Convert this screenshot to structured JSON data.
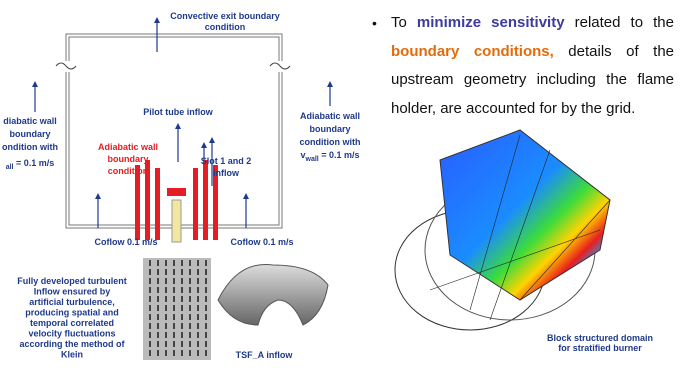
{
  "diagram": {
    "top_label": [
      "Convective exit boundary",
      "condition"
    ],
    "left_label": [
      "diabatic wall",
      "boundary",
      "ondition with"
    ],
    "left_velocity": {
      "subscript": "all",
      "rest": " = 0.1 m/s"
    },
    "right_label": [
      "Adiabatic wall",
      "boundary",
      "condition with"
    ],
    "right_velocity": {
      "symbol": "v",
      "subscript": "wall",
      "rest": " = 0.1 m/s"
    },
    "pilot_label": "Pilot tube inflow",
    "slot_label": [
      "Slot 1 and 2",
      "inflow"
    ],
    "red_label": [
      "Adiabatic wall",
      "boundary",
      "condition"
    ],
    "coflow_left": "Coflow 0.1 m/s",
    "coflow_right": "Coflow 0.1 m/s"
  },
  "inflow_note": [
    "Fully developed turbulent",
    "Inflow ensured by",
    "artificial turbulence,",
    "producing spatial and",
    "temporal correlated",
    "velocity fluctuations",
    "according the method of",
    "Klein"
  ],
  "inflow_caption": "TSF_A inflow",
  "bullet": {
    "parts": [
      "To ",
      "minimize sensitivity",
      " related to the ",
      "boundary conditions,",
      " details of the upstream geometry including the flame holder, are accounted for by the grid."
    ]
  },
  "domain_caption": [
    "Block structured domain",
    "for stratified burner"
  ]
}
